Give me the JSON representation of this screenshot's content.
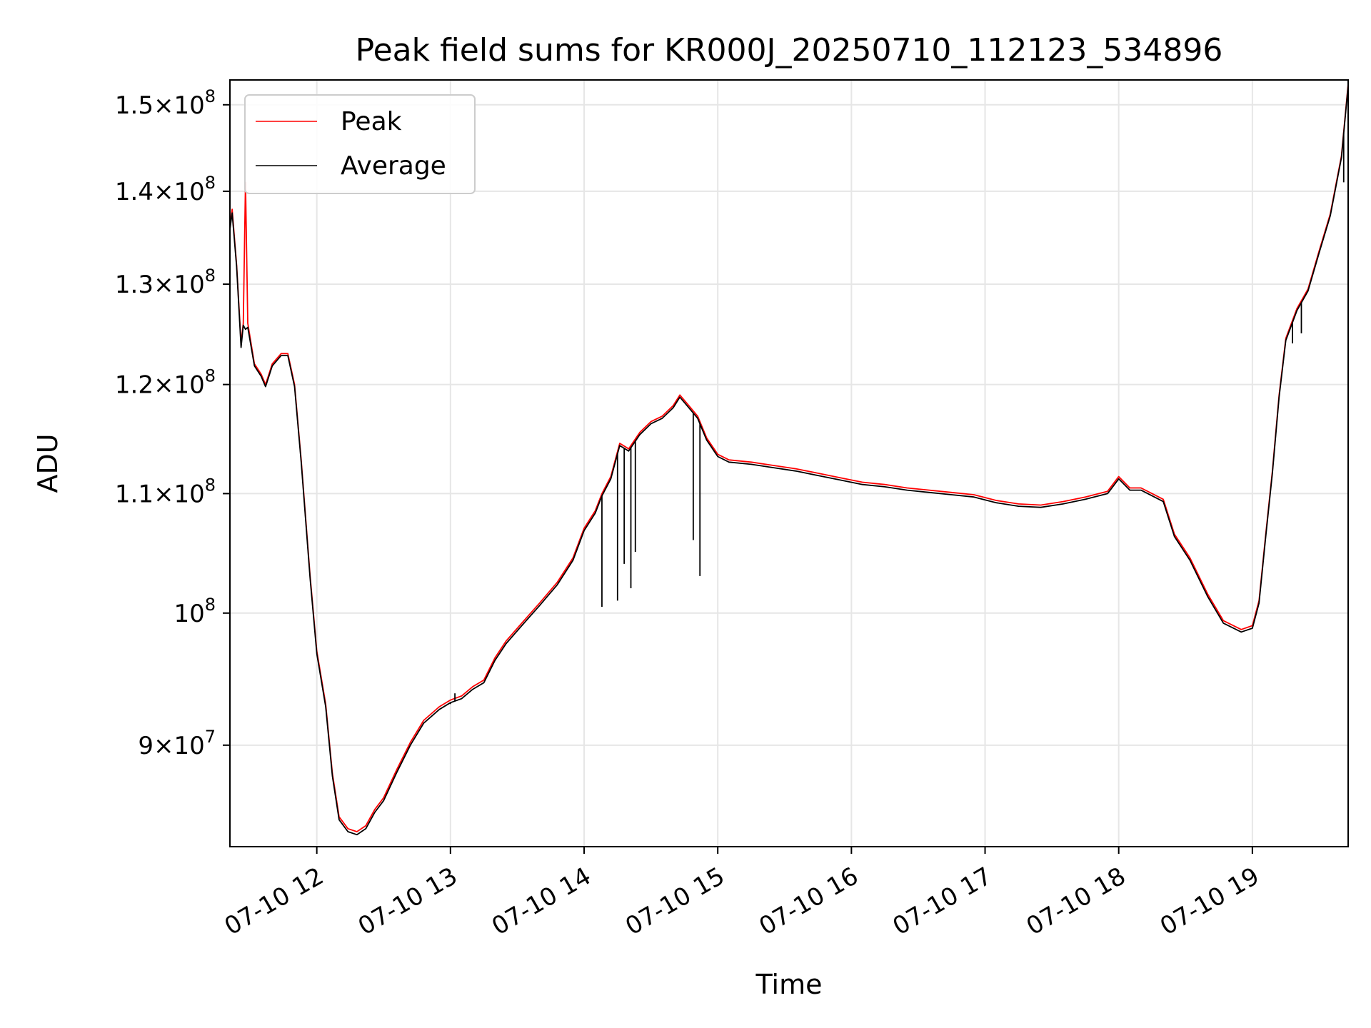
{
  "chart_data": {
    "type": "line",
    "title": "Peak field sums for KR000J_20250710_112123_534896",
    "xlabel": "Time",
    "ylabel": "ADU",
    "yscale": "log",
    "ylim": [
      83000000,
      153000000
    ],
    "xlim": [
      "07-10 11:21",
      "07-10 19:43"
    ],
    "grid": true,
    "legend_position": "upper-left",
    "x_ticks": [
      {
        "label": "07-10 12",
        "value": "07-10 12:00"
      },
      {
        "label": "07-10 13",
        "value": "07-10 13:00"
      },
      {
        "label": "07-10 14",
        "value": "07-10 14:00"
      },
      {
        "label": "07-10 15",
        "value": "07-10 15:00"
      },
      {
        "label": "07-10 16",
        "value": "07-10 16:00"
      },
      {
        "label": "07-10 17",
        "value": "07-10 17:00"
      },
      {
        "label": "07-10 18",
        "value": "07-10 18:00"
      },
      {
        "label": "07-10 19",
        "value": "07-10 19:00"
      }
    ],
    "y_ticks": [
      {
        "value": 90000000,
        "mantissa": "9",
        "exponent": "7"
      },
      {
        "value": 100000000,
        "mantissa": "",
        "exponent": "8"
      },
      {
        "value": 110000000,
        "mantissa": "1.1",
        "exponent": "8"
      },
      {
        "value": 120000000,
        "mantissa": "1.2",
        "exponent": "8"
      },
      {
        "value": 130000000,
        "mantissa": "1.3",
        "exponent": "8"
      },
      {
        "value": 140000000,
        "mantissa": "1.4",
        "exponent": "8"
      },
      {
        "value": 150000000,
        "mantissa": "1.5",
        "exponent": "8"
      }
    ],
    "series": [
      {
        "name": "Peak",
        "color": "#ff0000",
        "points": [
          [
            "07-10 11:21",
            136000000
          ],
          [
            "07-10 11:22",
            138000000
          ],
          [
            "07-10 11:24",
            132000000
          ],
          [
            "07-10 11:26",
            124000000
          ],
          [
            "07-10 11:27",
            126000000
          ],
          [
            "07-10 11:28",
            141000000
          ],
          [
            "07-10 11:29",
            126000000
          ],
          [
            "07-10 11:32",
            122000000
          ],
          [
            "07-10 11:35",
            121000000
          ],
          [
            "07-10 11:37",
            120000000
          ],
          [
            "07-10 11:40",
            122000000
          ],
          [
            "07-10 11:44",
            123000000
          ],
          [
            "07-10 11:47",
            123000000
          ],
          [
            "07-10 11:50",
            120000000
          ],
          [
            "07-10 11:53",
            113000000
          ],
          [
            "07-10 11:57",
            103000000
          ],
          [
            "07-10 12:00",
            97000000
          ],
          [
            "07-10 12:04",
            93000000
          ],
          [
            "07-10 12:07",
            88000000
          ],
          [
            "07-10 12:10",
            85000000
          ],
          [
            "07-10 12:14",
            84200000
          ],
          [
            "07-10 12:18",
            84000000
          ],
          [
            "07-10 12:22",
            84400000
          ],
          [
            "07-10 12:26",
            85500000
          ],
          [
            "07-10 12:30",
            86300000
          ],
          [
            "07-10 12:36",
            88300000
          ],
          [
            "07-10 12:42",
            90200000
          ],
          [
            "07-10 12:48",
            91800000
          ],
          [
            "07-10 12:55",
            92800000
          ],
          [
            "07-10 13:00",
            93300000
          ],
          [
            "07-10 13:05",
            93600000
          ],
          [
            "07-10 13:10",
            94300000
          ],
          [
            "07-10 13:15",
            94800000
          ],
          [
            "07-10 13:20",
            96500000
          ],
          [
            "07-10 13:25",
            97800000
          ],
          [
            "07-10 13:32",
            99200000
          ],
          [
            "07-10 13:40",
            100800000
          ],
          [
            "07-10 13:48",
            102500000
          ],
          [
            "07-10 13:55",
            104500000
          ],
          [
            "07-10 14:00",
            107000000
          ],
          [
            "07-10 14:05",
            108500000
          ],
          [
            "07-10 14:08",
            110000000
          ],
          [
            "07-10 14:12",
            111500000
          ],
          [
            "07-10 14:16",
            114500000
          ],
          [
            "07-10 14:20",
            114000000
          ],
          [
            "07-10 14:25",
            115500000
          ],
          [
            "07-10 14:30",
            116500000
          ],
          [
            "07-10 14:35",
            117000000
          ],
          [
            "07-10 14:40",
            118000000
          ],
          [
            "07-10 14:43",
            119000000
          ],
          [
            "07-10 14:47",
            118000000
          ],
          [
            "07-10 14:51",
            117000000
          ],
          [
            "07-10 14:55",
            115000000
          ],
          [
            "07-10 15:00",
            113500000
          ],
          [
            "07-10 15:05",
            113000000
          ],
          [
            "07-10 15:15",
            112800000
          ],
          [
            "07-10 15:25",
            112500000
          ],
          [
            "07-10 15:35",
            112200000
          ],
          [
            "07-10 15:45",
            111800000
          ],
          [
            "07-10 15:55",
            111400000
          ],
          [
            "07-10 16:05",
            111000000
          ],
          [
            "07-10 16:15",
            110800000
          ],
          [
            "07-10 16:25",
            110500000
          ],
          [
            "07-10 16:35",
            110300000
          ],
          [
            "07-10 16:45",
            110100000
          ],
          [
            "07-10 16:55",
            109900000
          ],
          [
            "07-10 17:05",
            109400000
          ],
          [
            "07-10 17:15",
            109100000
          ],
          [
            "07-10 17:25",
            109000000
          ],
          [
            "07-10 17:35",
            109300000
          ],
          [
            "07-10 17:45",
            109700000
          ],
          [
            "07-10 17:55",
            110200000
          ],
          [
            "07-10 18:00",
            111500000
          ],
          [
            "07-10 18:05",
            110500000
          ],
          [
            "07-10 18:10",
            110500000
          ],
          [
            "07-10 18:15",
            110000000
          ],
          [
            "07-10 18:20",
            109500000
          ],
          [
            "07-10 18:25",
            106500000
          ],
          [
            "07-10 18:32",
            104500000
          ],
          [
            "07-10 18:40",
            101500000
          ],
          [
            "07-10 18:47",
            99400000
          ],
          [
            "07-10 18:55",
            98700000
          ],
          [
            "07-10 19:00",
            99000000
          ],
          [
            "07-10 19:03",
            101000000
          ],
          [
            "07-10 19:06",
            106500000
          ],
          [
            "07-10 19:09",
            112000000
          ],
          [
            "07-10 19:12",
            119000000
          ],
          [
            "07-10 19:15",
            124500000
          ],
          [
            "07-10 19:20",
            127500000
          ],
          [
            "07-10 19:25",
            129500000
          ],
          [
            "07-10 19:30",
            133500000
          ],
          [
            "07-10 19:35",
            137500000
          ],
          [
            "07-10 19:40",
            144000000
          ],
          [
            "07-10 19:43",
            152500000
          ]
        ]
      },
      {
        "name": "Average",
        "color": "#000000",
        "points": [
          [
            "07-10 11:21",
            135800000
          ],
          [
            "07-10 11:22",
            137600000
          ],
          [
            "07-10 11:24",
            131800000
          ],
          [
            "07-10 11:26",
            123600000
          ],
          [
            "07-10 11:27",
            125800000
          ],
          [
            "07-10 11:28",
            125400000
          ],
          [
            "07-10 11:29",
            125600000
          ],
          [
            "07-10 11:32",
            121800000
          ],
          [
            "07-10 11:35",
            120800000
          ],
          [
            "07-10 11:37",
            119800000
          ],
          [
            "07-10 11:40",
            121800000
          ],
          [
            "07-10 11:44",
            122800000
          ],
          [
            "07-10 11:47",
            122800000
          ],
          [
            "07-10 11:50",
            119800000
          ],
          [
            "07-10 11:53",
            112800000
          ],
          [
            "07-10 11:57",
            102800000
          ],
          [
            "07-10 12:00",
            96800000
          ],
          [
            "07-10 12:04",
            92800000
          ],
          [
            "07-10 12:07",
            87800000
          ],
          [
            "07-10 12:10",
            84800000
          ],
          [
            "07-10 12:14",
            84000000
          ],
          [
            "07-10 12:18",
            83800000
          ],
          [
            "07-10 12:22",
            84200000
          ],
          [
            "07-10 12:26",
            85300000
          ],
          [
            "07-10 12:30",
            86100000
          ],
          [
            "07-10 12:36",
            88100000
          ],
          [
            "07-10 12:42",
            90000000
          ],
          [
            "07-10 12:48",
            91600000
          ],
          [
            "07-10 12:55",
            92600000
          ],
          [
            "07-10 13:00",
            93100000
          ],
          [
            "07-10 13:05",
            93400000
          ],
          [
            "07-10 13:10",
            94100000
          ],
          [
            "07-10 13:15",
            94600000
          ],
          [
            "07-10 13:20",
            96300000
          ],
          [
            "07-10 13:25",
            97600000
          ],
          [
            "07-10 13:32",
            99000000
          ],
          [
            "07-10 13:40",
            100600000
          ],
          [
            "07-10 13:48",
            102300000
          ],
          [
            "07-10 13:55",
            104300000
          ],
          [
            "07-10 14:00",
            106800000
          ],
          [
            "07-10 14:05",
            108300000
          ],
          [
            "07-10 14:08",
            109800000
          ],
          [
            "07-10 14:12",
            111300000
          ],
          [
            "07-10 14:16",
            114300000
          ],
          [
            "07-10 14:20",
            113800000
          ],
          [
            "07-10 14:25",
            115300000
          ],
          [
            "07-10 14:30",
            116300000
          ],
          [
            "07-10 14:35",
            116800000
          ],
          [
            "07-10 14:40",
            117800000
          ],
          [
            "07-10 14:43",
            118800000
          ],
          [
            "07-10 14:47",
            117800000
          ],
          [
            "07-10 14:51",
            116800000
          ],
          [
            "07-10 14:55",
            114800000
          ],
          [
            "07-10 15:00",
            113300000
          ],
          [
            "07-10 15:05",
            112800000
          ],
          [
            "07-10 15:15",
            112600000
          ],
          [
            "07-10 15:25",
            112300000
          ],
          [
            "07-10 15:35",
            112000000
          ],
          [
            "07-10 15:45",
            111600000
          ],
          [
            "07-10 15:55",
            111200000
          ],
          [
            "07-10 16:05",
            110800000
          ],
          [
            "07-10 16:15",
            110600000
          ],
          [
            "07-10 16:25",
            110300000
          ],
          [
            "07-10 16:35",
            110100000
          ],
          [
            "07-10 16:45",
            109900000
          ],
          [
            "07-10 16:55",
            109700000
          ],
          [
            "07-10 17:05",
            109200000
          ],
          [
            "07-10 17:15",
            108900000
          ],
          [
            "07-10 17:25",
            108800000
          ],
          [
            "07-10 17:35",
            109100000
          ],
          [
            "07-10 17:45",
            109500000
          ],
          [
            "07-10 17:55",
            110000000
          ],
          [
            "07-10 18:00",
            111300000
          ],
          [
            "07-10 18:05",
            110300000
          ],
          [
            "07-10 18:10",
            110300000
          ],
          [
            "07-10 18:15",
            109800000
          ],
          [
            "07-10 18:20",
            109300000
          ],
          [
            "07-10 18:25",
            106300000
          ],
          [
            "07-10 18:32",
            104300000
          ],
          [
            "07-10 18:40",
            101300000
          ],
          [
            "07-10 18:47",
            99200000
          ],
          [
            "07-10 18:55",
            98500000
          ],
          [
            "07-10 19:00",
            98800000
          ],
          [
            "07-10 19:03",
            100800000
          ],
          [
            "07-10 19:06",
            106300000
          ],
          [
            "07-10 19:09",
            111800000
          ],
          [
            "07-10 19:12",
            118800000
          ],
          [
            "07-10 19:15",
            124300000
          ],
          [
            "07-10 19:20",
            127300000
          ],
          [
            "07-10 19:25",
            129300000
          ],
          [
            "07-10 19:30",
            133300000
          ],
          [
            "07-10 19:35",
            137300000
          ],
          [
            "07-10 19:40",
            143800000
          ],
          [
            "07-10 19:43",
            152300000
          ]
        ],
        "dips": [
          [
            "07-10 14:08",
            100500000
          ],
          [
            "07-10 14:15",
            101000000
          ],
          [
            "07-10 14:18",
            104000000
          ],
          [
            "07-10 14:21",
            102000000
          ],
          [
            "07-10 14:23",
            105000000
          ],
          [
            "07-10 14:49",
            106000000
          ],
          [
            "07-10 14:52",
            103000000
          ],
          [
            "07-10 13:00",
            93000000
          ],
          [
            "07-10 13:02",
            93800000
          ],
          [
            "07-10 19:18",
            124000000
          ],
          [
            "07-10 19:22",
            125000000
          ],
          [
            "07-10 19:41",
            141000000
          ]
        ]
      }
    ]
  }
}
